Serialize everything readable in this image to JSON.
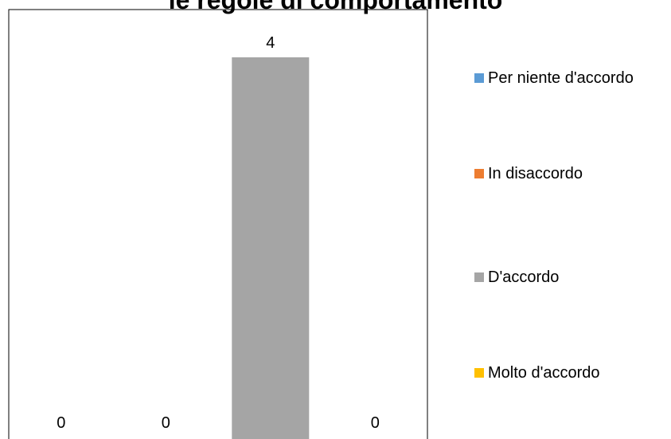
{
  "chart_data": {
    "type": "bar",
    "title": "le regole di comportamento",
    "categories": [
      "Per niente d'accordo",
      "In disaccordo",
      "D'accordo",
      "Molto d'accordo"
    ],
    "values": [
      0,
      0,
      4,
      0
    ],
    "data_labels": [
      "0",
      "0",
      "4",
      "0"
    ],
    "colors": [
      "#5B9BD5",
      "#ED7D31",
      "#A5A5A5",
      "#FFC000"
    ],
    "ylim": [
      0,
      4.5
    ],
    "grid": false,
    "legend_position": "right",
    "plot_border_color": "#000000"
  }
}
